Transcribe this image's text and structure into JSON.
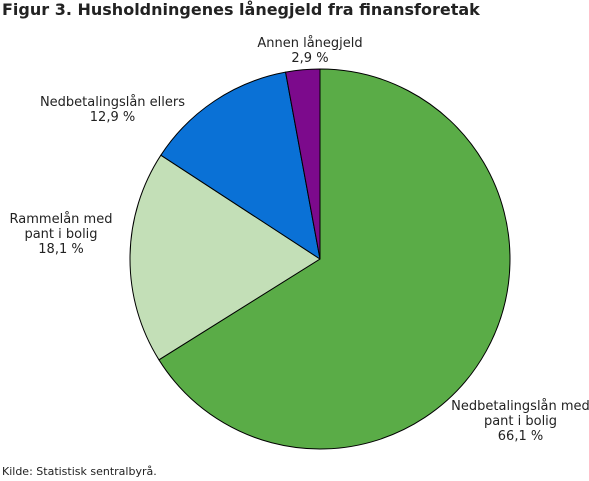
{
  "title": "Figur 3. Husholdningenes lånegjeld fra finansforetak",
  "source": "Kilde: Statistisk sentralbyrå.",
  "chart_data": {
    "type": "pie",
    "slices": [
      {
        "label_lines": [
          "Nedbetalingslån med",
          "pant i bolig"
        ],
        "value_label": "66,1 %",
        "value": 66.1,
        "color": "#5aac47"
      },
      {
        "label_lines": [
          "Rammelån med",
          "pant i bolig"
        ],
        "value_label": "18,1 %",
        "value": 18.1,
        "color": "#c3dfb7"
      },
      {
        "label_lines": [
          "Nedbetalingslån ellers"
        ],
        "value_label": "12,9 %",
        "value": 12.9,
        "color": "#0a71d6"
      },
      {
        "label_lines": [
          "Annen lånegjeld"
        ],
        "value_label": "2,9 %",
        "value": 2.9,
        "color": "#7c0a8c"
      }
    ]
  }
}
